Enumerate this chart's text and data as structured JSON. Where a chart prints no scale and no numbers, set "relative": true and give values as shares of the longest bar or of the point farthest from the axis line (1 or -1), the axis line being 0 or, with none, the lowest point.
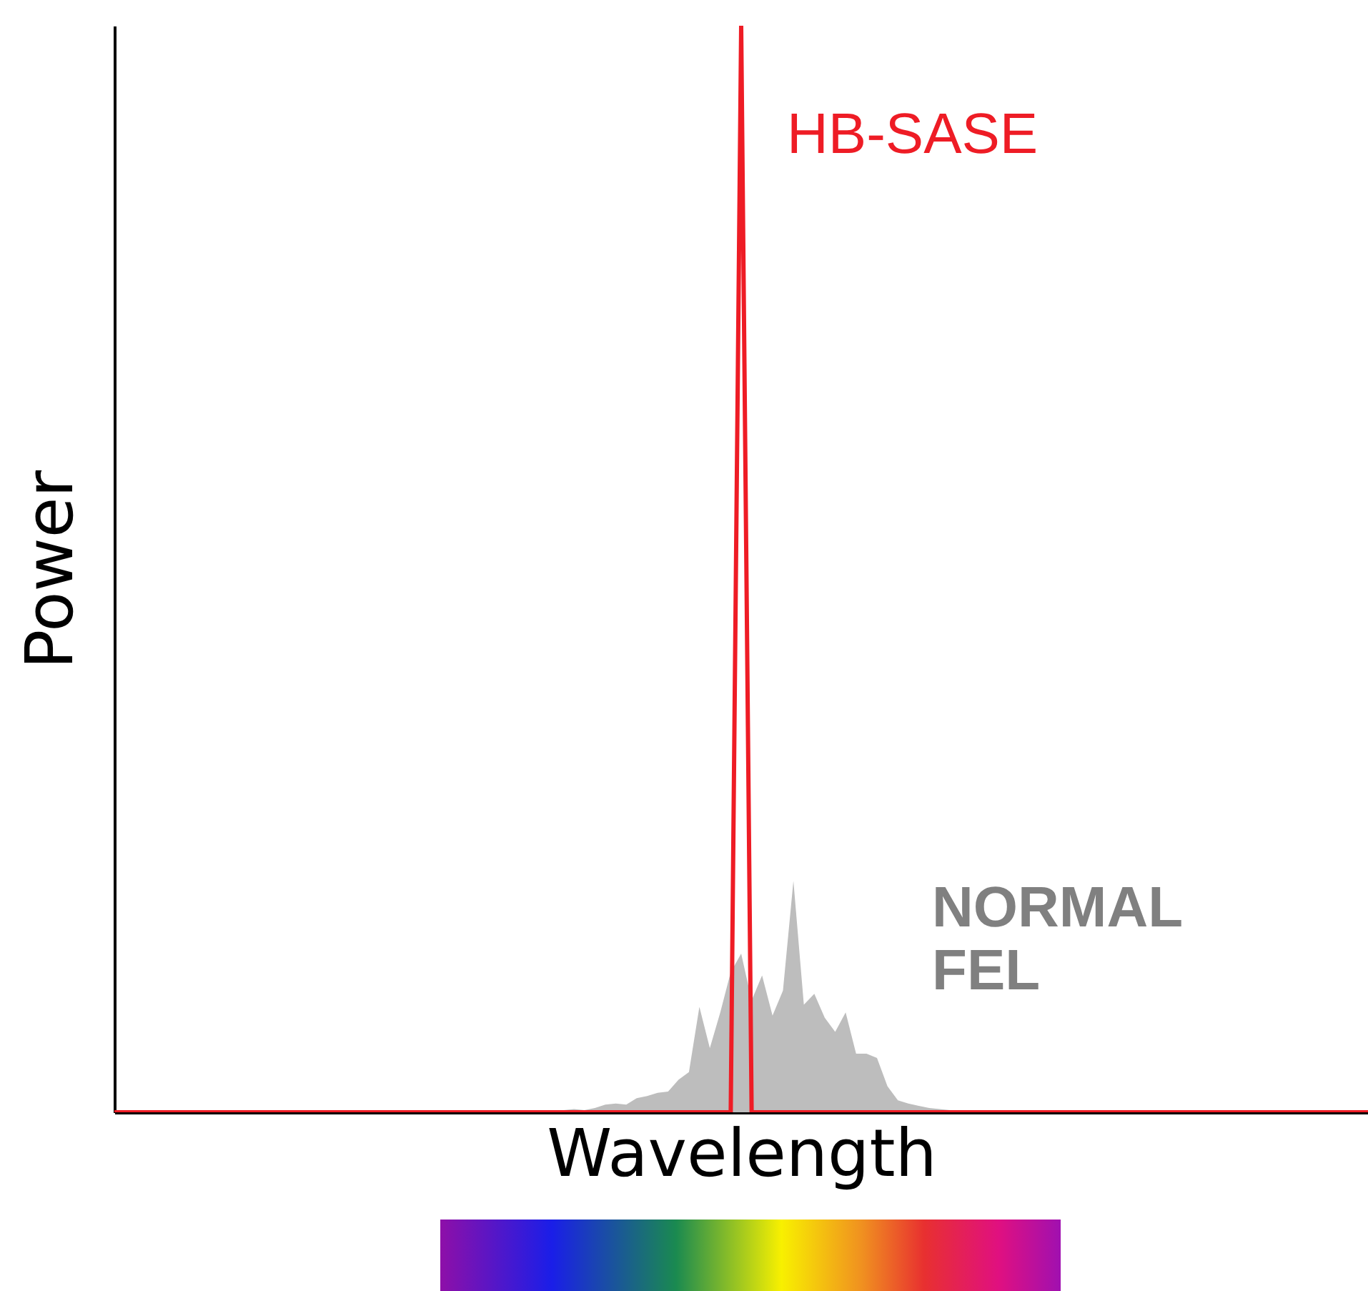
{
  "chart_data": {
    "type": "line",
    "xlabel": "Wavelength",
    "ylabel": "Power",
    "relative": true,
    "tick_labels": false,
    "grid": false,
    "categories": [
      null,
      null,
      null,
      null,
      null,
      null,
      null,
      null,
      null,
      null,
      null,
      null,
      null,
      null,
      null,
      null,
      null,
      null,
      null,
      null,
      null,
      null,
      null,
      null,
      null,
      null,
      null,
      null,
      null,
      null,
      null,
      null,
      null,
      null,
      null,
      null,
      null,
      null,
      null,
      null,
      null,
      null,
      null,
      null,
      null,
      null,
      null,
      null,
      null,
      null,
      null,
      null,
      null,
      null,
      null,
      null,
      null,
      null,
      null,
      null,
      null,
      null,
      null,
      null,
      null,
      null,
      null,
      null,
      null,
      null,
      null,
      null,
      null,
      null,
      null,
      null,
      null,
      null,
      null,
      null,
      null,
      null,
      null,
      null,
      null,
      null,
      null,
      null,
      null,
      null,
      null,
      null,
      null,
      null,
      null,
      null,
      null,
      null,
      null,
      null,
      null,
      null,
      null,
      null,
      null,
      null,
      null,
      null,
      null,
      null,
      null,
      null,
      null,
      null,
      null,
      null,
      null,
      null,
      null,
      null,
      null
    ],
    "series": [
      {
        "name": "NORMAL FEL",
        "type": "area",
        "color": "#bdbdbd",
        "values": [
          0,
          0,
          0,
          0,
          0,
          0,
          0,
          0,
          0,
          0,
          0,
          0,
          0,
          0,
          0,
          0,
          0,
          0,
          0,
          0,
          0,
          0,
          0,
          0,
          0,
          0,
          0,
          0,
          0,
          0,
          0,
          0,
          0,
          0,
          0,
          0,
          0,
          0,
          0,
          0,
          0,
          0,
          0.001,
          0.002,
          0.003,
          0.002,
          0.004,
          0.007,
          0.008,
          0.007,
          0.013,
          0.015,
          0.018,
          0.019,
          0.03,
          0.037,
          0.097,
          0.059,
          0.092,
          0.129,
          0.146,
          0.103,
          0.126,
          0.089,
          0.112,
          0.213,
          0.099,
          0.109,
          0.087,
          0.074,
          0.092,
          0.054,
          0.054,
          0.05,
          0.024,
          0.011,
          0.008,
          0.006,
          0.004,
          0.003,
          0.002,
          0.001,
          0,
          0,
          0,
          0,
          0,
          0,
          0,
          0,
          0,
          0,
          0,
          0,
          0,
          0,
          0,
          0,
          0,
          0,
          0,
          0,
          0,
          0,
          0,
          0,
          0,
          0,
          0,
          0,
          0,
          0,
          0,
          0,
          0,
          0,
          0,
          0,
          0,
          0,
          0
        ]
      },
      {
        "name": "HB-SASE",
        "type": "line",
        "color": "#ee1c25",
        "values": [
          0,
          0,
          0,
          0,
          0,
          0,
          0,
          0,
          0,
          0,
          0,
          0,
          0,
          0,
          0,
          0,
          0,
          0,
          0,
          0,
          0,
          0,
          0,
          0,
          0,
          0,
          0,
          0,
          0,
          0,
          0,
          0,
          0,
          0,
          0,
          0,
          0,
          0,
          0,
          0,
          0,
          0,
          0,
          0,
          0,
          0,
          0,
          0,
          0,
          0,
          0,
          0,
          0,
          0,
          0,
          0,
          0,
          0,
          0,
          0,
          1,
          0,
          0,
          0,
          0,
          0,
          0,
          0,
          0,
          0,
          0,
          0,
          0,
          0,
          0,
          0,
          0,
          0,
          0,
          0,
          0,
          0,
          0,
          0,
          0,
          0,
          0,
          0,
          0,
          0,
          0,
          0,
          0,
          0,
          0,
          0,
          0,
          0,
          0,
          0,
          0,
          0,
          0,
          0,
          0,
          0,
          0,
          0,
          0,
          0,
          0,
          0,
          0,
          0,
          0,
          0,
          0,
          0,
          0,
          0,
          0
        ]
      }
    ]
  }
}
